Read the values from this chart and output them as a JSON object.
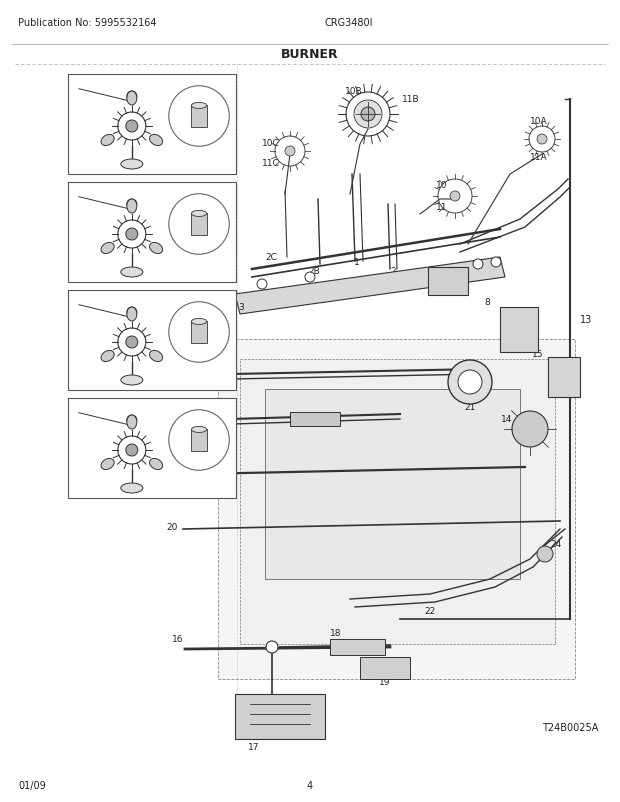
{
  "title": "BURNER",
  "pub_no": "Publication No: 5995532164",
  "model": "CRG3480I",
  "date": "01/09",
  "page": "4",
  "ref_code": "T24B0025A",
  "bg_color": "#ffffff",
  "text_color": "#222222",
  "figsize": [
    6.2,
    8.03
  ],
  "dpi": 100
}
